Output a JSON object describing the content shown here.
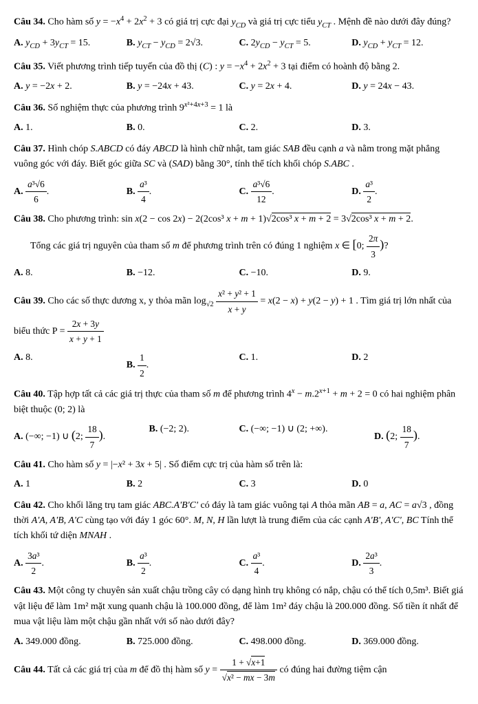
{
  "q34": {
    "label": "Câu 34.",
    "text_1": "Cho hàm số ",
    "eq_1": "y = −x⁴ + 2x² + 3",
    "text_2": " có giá trị cực đại ",
    "eq_2": "y_CD",
    "text_3": " và giá trị cực tiểu ",
    "eq_3": "y_CT",
    "text_4": ". Mệnh đề nào dưới đây đúng?",
    "A": "y_CD + 3y_CT = 15.",
    "B": "y_CT − y_CD = 2√3.",
    "C": "2y_CD − y_CT = 5.",
    "D": "y_CD + y_CT = 12."
  },
  "q35": {
    "label": "Câu 35.",
    "text_1": "Viết phương trình tiếp tuyến của đồ thị ",
    "eq_1": "(C) : y = −x⁴ + 2x² + 3",
    "text_2": " tại điểm có hoành độ bằng 2.",
    "A": "y = −2x + 2.",
    "B": "y = −24x + 43.",
    "C": "y = 2x + 4.",
    "D": "y = 24x − 43."
  },
  "q36": {
    "label": "Câu 36.",
    "text_1": "Số nghiệm thực của phương trình ",
    "eq_1": "9^(x²+4x+3) = 1",
    "text_2": " là",
    "A": "1.",
    "B": "0.",
    "C": "2.",
    "D": "3."
  },
  "q37": {
    "label": "Câu 37.",
    "text_1": "Hình chóp ",
    "eq_1": "S.ABCD",
    "text_2": " có đáy ",
    "eq_2": "ABCD",
    "text_3": " là hình chữ nhật, tam giác ",
    "eq_3": "SAB",
    "text_4": " đều cạnh ",
    "eq_4": "a",
    "text_5": " và nằm trong mặt phẳng vuông góc với đáy. Biết góc giữa ",
    "eq_5": "SC",
    "text_6": " và ",
    "eq_6": "(SAD)",
    "text_7": " bằng 30°, tính thể tích khối chóp ",
    "eq_7": "S.ABC",
    "text_8": ".",
    "A_num": "a³√6",
    "A_den": "6",
    "B_num": "a³",
    "B_den": "4",
    "C_num": "a³√6",
    "C_den": "12",
    "D_num": "a³",
    "D_den": "2"
  },
  "q38": {
    "label": "Câu 38.",
    "text_1": "Cho phương trình: ",
    "eq_1": "sin x(2 − cos 2x) − 2(2cos³ x + m + 1)√(2cos³ x + m + 2) = 3√(2cos³ x + m + 2)",
    "text_2": ".",
    "text_3": "Tổng các giá trị nguyên của tham số ",
    "eq_2": "m",
    "text_4": " để phương trình trên có đúng 1 nghiệm ",
    "eq_3": "x ∈ [0; 2π/3)",
    "text_5": "?",
    "A": "8.",
    "B": "−12.",
    "C": "−10.",
    "D": "9."
  },
  "q39": {
    "label": "Câu 39.",
    "text_1": "Cho các số thực dương x, y thỏa mãn ",
    "eq_1": "log_√2 ((x² + y² + 1)/(x + y)) = x(2 − x) + y(2 − y) + 1",
    "text_2": ". Tìm giá trị lớn nhất của biểu thức ",
    "eq_2": "P = (2x + 3y)/(x + y + 1)",
    "A": "8.",
    "B": "1/2.",
    "C": "1.",
    "D": "2"
  },
  "q40": {
    "label": "Câu 40.",
    "text_1": "Tập hợp tất cả các giá trị thực của tham số ",
    "eq_1": "m",
    "text_2": " để phương trình ",
    "eq_2": "4ˣ − m.2ˣ⁺¹ + m + 2 = 0",
    "text_3": " có hai nghiệm phân biệt thuộc (0; 2) là",
    "A": "(−∞; −1) ∪ (2; 18/7).",
    "B": "(−2; 2).",
    "C": "(−∞; −1) ∪ (2; +∞).",
    "D": "(2; 18/7)."
  },
  "q41": {
    "label": "Câu 41.",
    "text_1": "Cho hàm số ",
    "eq_1": "y = |−x² + 3x + 5|",
    "text_2": ". Số điểm cực trị của hàm số trên là:",
    "A": "1",
    "B": "2",
    "C": "3",
    "D": "0"
  },
  "q42": {
    "label": "Câu 42.",
    "text_1": "Cho khối lăng trụ tam giác ",
    "eq_1": "ABC.A'B'C'",
    "text_2": " có đáy là tam giác vuông tại ",
    "eq_2": "A",
    "text_3": " thỏa mãn ",
    "eq_3": "AB = a, AC = a√3",
    "text_4": ", đồng thời ",
    "eq_4": "A'A, A'B, A'C",
    "text_5": " cùng tạo với đáy 1 góc 60°. ",
    "eq_5": "M, N, H",
    "text_6": " lần lượt là trung điểm của các cạnh ",
    "eq_6": "A'B', A'C', BC",
    "text_7": " Tính thể tích khối tứ diện ",
    "eq_7": "MNAH",
    "text_8": ".",
    "A_num": "3a³",
    "A_den": "2",
    "B_num": "a³",
    "B_den": "2",
    "C_num": "a³",
    "C_den": "4",
    "D_num": "2a³",
    "D_den": "3"
  },
  "q43": {
    "label": "Câu 43.",
    "text_1": "Một công ty chuyên sản xuất chậu trồng cây có dạng hình trụ không có nắp, chậu có thể tích 0,5m³. Biết giá vật liệu để làm 1m² mặt xung quanh chậu là 100.000 đồng, để làm 1m² đáy chậu là 200.000 đồng. Số tiền ít nhất để mua vật liệu làm một chậu gần nhất với số nào dưới đây?",
    "A": "349.000 đồng.",
    "B": "725.000 đồng.",
    "C": "498.000 đồng.",
    "D": "369.000 đồng."
  },
  "q44": {
    "label": "Câu 44.",
    "text_1": "Tất cả các giá trị của ",
    "eq_1": "m",
    "text_2": " để đồ thị hàm số ",
    "eq_2_num": "1 + √(x+1)",
    "eq_2_den": "√(x² − mx − 3m)",
    "text_3": " có đúng hai đường tiệm cận"
  }
}
